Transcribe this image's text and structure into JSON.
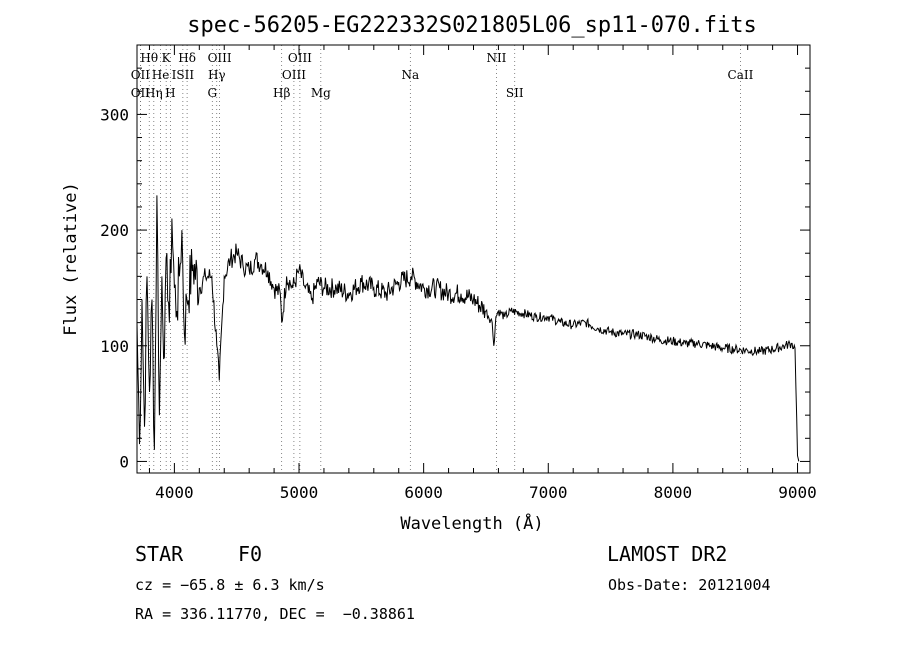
{
  "chart_data": {
    "type": "line",
    "title": "spec-56205-EG222332S021805L06_sp11-070.fits",
    "xlabel": "Wavelength (Å)",
    "ylabel": "Flux (relative)",
    "xlim": [
      3700,
      9100
    ],
    "ylim": [
      -10,
      360
    ],
    "xticks": [
      4000,
      5000,
      6000,
      7000,
      8000,
      9000
    ],
    "yticks": [
      0,
      100,
      200,
      300
    ],
    "grid": false,
    "series": [
      {
        "x": [
          3700,
          3720,
          3740,
          3760,
          3780,
          3800,
          3820,
          3840,
          3860,
          3880,
          3900,
          3920,
          3940,
          3960,
          3980,
          4000,
          4020,
          4040,
          4060,
          4080,
          4100,
          4150,
          4200,
          4250,
          4300,
          4340,
          4360,
          4400,
          4450,
          4500,
          4550,
          4600,
          4650,
          4700,
          4750,
          4800,
          4850,
          4861,
          4900,
          4950,
          5000,
          5050,
          5100,
          5150,
          5200,
          5300,
          5400,
          5500,
          5600,
          5700,
          5800,
          5900,
          6000,
          6100,
          6200,
          6300,
          6400,
          6500,
          6550,
          6563,
          6580,
          6600,
          6650,
          6700,
          6800,
          6900,
          7000,
          7100,
          7200,
          7300,
          7400,
          7500,
          7600,
          7700,
          7800,
          7900,
          8000,
          8100,
          8200,
          8300,
          8400,
          8500,
          8600,
          8700,
          8800,
          8900,
          8950,
          8980,
          9000,
          9010
        ],
        "y": [
          120,
          15,
          140,
          30,
          160,
          60,
          140,
          10,
          230,
          40,
          160,
          90,
          180,
          120,
          210,
          150,
          130,
          160,
          200,
          110,
          140,
          170,
          150,
          160,
          160,
          100,
          70,
          160,
          175,
          180,
          170,
          165,
          175,
          170,
          165,
          150,
          145,
          120,
          160,
          150,
          165,
          150,
          140,
          155,
          150,
          150,
          145,
          155,
          150,
          145,
          155,
          160,
          150,
          150,
          145,
          145,
          140,
          130,
          120,
          100,
          125,
          130,
          125,
          130,
          128,
          125,
          125,
          120,
          118,
          120,
          115,
          112,
          110,
          110,
          108,
          105,
          104,
          102,
          102,
          100,
          98,
          97,
          96,
          95,
          97,
          100,
          102,
          98,
          5,
          0
        ]
      }
    ],
    "annotations": [
      {
        "label": "Hθ",
        "x": 3798,
        "row": 1
      },
      {
        "label": "K",
        "x": 3934,
        "row": 1
      },
      {
        "label": "Hδ",
        "x": 4102,
        "row": 1
      },
      {
        "label": "OIII",
        "x": 4363,
        "row": 1
      },
      {
        "label": "OIII",
        "x": 5007,
        "row": 1
      },
      {
        "label": "NII",
        "x": 6584,
        "row": 1
      },
      {
        "label": "OII",
        "x": 3727,
        "row": 2
      },
      {
        "label": "He",
        "x": 3889,
        "row": 2
      },
      {
        "label": "ISII",
        "x": 4068,
        "row": 2
      },
      {
        "label": "Hγ",
        "x": 4340,
        "row": 2
      },
      {
        "label": "OIII",
        "x": 4959,
        "row": 2
      },
      {
        "label": "Na",
        "x": 5893,
        "row": 2
      },
      {
        "label": "CaII",
        "x": 8542,
        "row": 2
      },
      {
        "label": "OII",
        "x": 3727,
        "row": 3
      },
      {
        "label": "Hη",
        "x": 3835,
        "row": 3
      },
      {
        "label": "H",
        "x": 3968,
        "row": 3
      },
      {
        "label": "G",
        "x": 4304,
        "row": 3
      },
      {
        "label": "Hβ",
        "x": 4861,
        "row": 3
      },
      {
        "label": "Mg",
        "x": 5175,
        "row": 3
      },
      {
        "label": "SII",
        "x": 6731,
        "row": 3
      }
    ]
  },
  "info": {
    "object_class": "STAR",
    "subclass": "F0",
    "survey": "LAMOST DR2",
    "redshift": "cz = −65.8 ± 6.3 km/s",
    "obs_date": "Obs-Date: 20121004",
    "coords": "RA = 336.11770, DEC =  −0.38861"
  }
}
